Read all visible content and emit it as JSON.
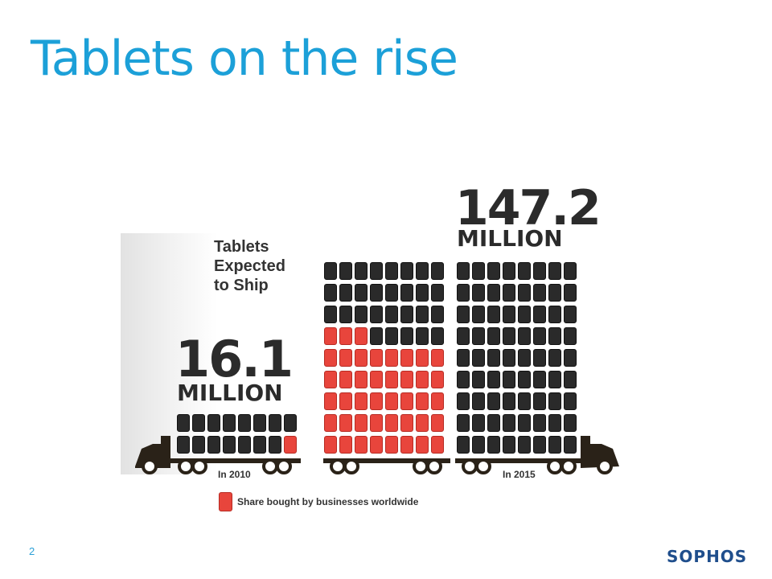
{
  "slide": {
    "title": "Tablets on the rise",
    "page_number": "2",
    "logo": "SOPHOS"
  },
  "infographic": {
    "caption": [
      "Tablets",
      "Expected",
      "to Ship"
    ],
    "year_2010": {
      "number": "16.1",
      "unit": "MILLION",
      "label": "In 2010"
    },
    "year_2015": {
      "number": "147.2",
      "unit": "MILLION",
      "label": "In 2015"
    },
    "legend": "Share bought by businesses worldwide",
    "colors": {
      "tablet": "#2a2a2a",
      "business_share": "#e8453c",
      "truck": "#2a2218"
    }
  }
}
